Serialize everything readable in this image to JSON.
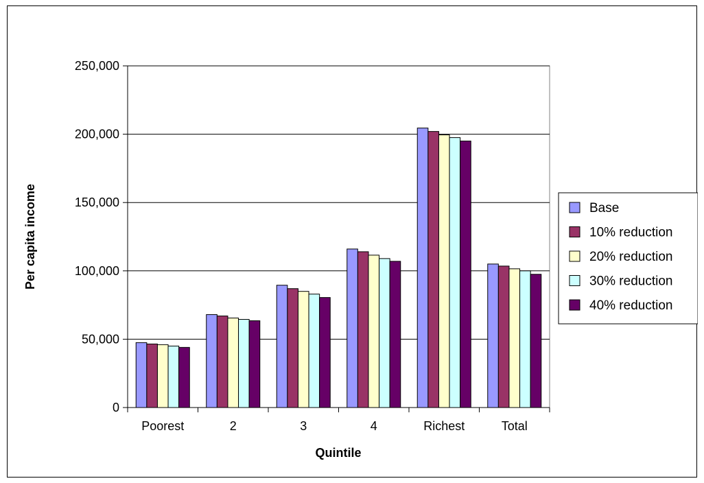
{
  "chart_data": {
    "type": "bar",
    "title": "",
    "xlabel": "Quintile",
    "ylabel": "Per capita income",
    "ylim": [
      0,
      250000
    ],
    "yticks": [
      "0",
      "50,000",
      "100,000",
      "150,000",
      "200,000",
      "250,000"
    ],
    "ytick_values": [
      0,
      50000,
      100000,
      150000,
      200000,
      250000
    ],
    "grid": true,
    "legend_position": "right",
    "categories": [
      "Poorest",
      "2",
      "3",
      "4",
      "Richest",
      "Total"
    ],
    "series": [
      {
        "name": "Base",
        "color": "#9999ff",
        "values": [
          47500,
          68000,
          89500,
          116000,
          204500,
          105000
        ]
      },
      {
        "name": "10% reduction",
        "color": "#993366",
        "values": [
          46500,
          67000,
          87000,
          114000,
          202000,
          103500
        ]
      },
      {
        "name": "20% reduction",
        "color": "#ffffcc",
        "values": [
          46000,
          65500,
          85000,
          111500,
          199500,
          101500
        ]
      },
      {
        "name": "30% reduction",
        "color": "#ccffff",
        "values": [
          45000,
          64500,
          83000,
          109000,
          197500,
          100000
        ]
      },
      {
        "name": "40% reduction",
        "color": "#660066",
        "values": [
          44000,
          63500,
          80500,
          107000,
          195000,
          97500
        ]
      }
    ]
  }
}
